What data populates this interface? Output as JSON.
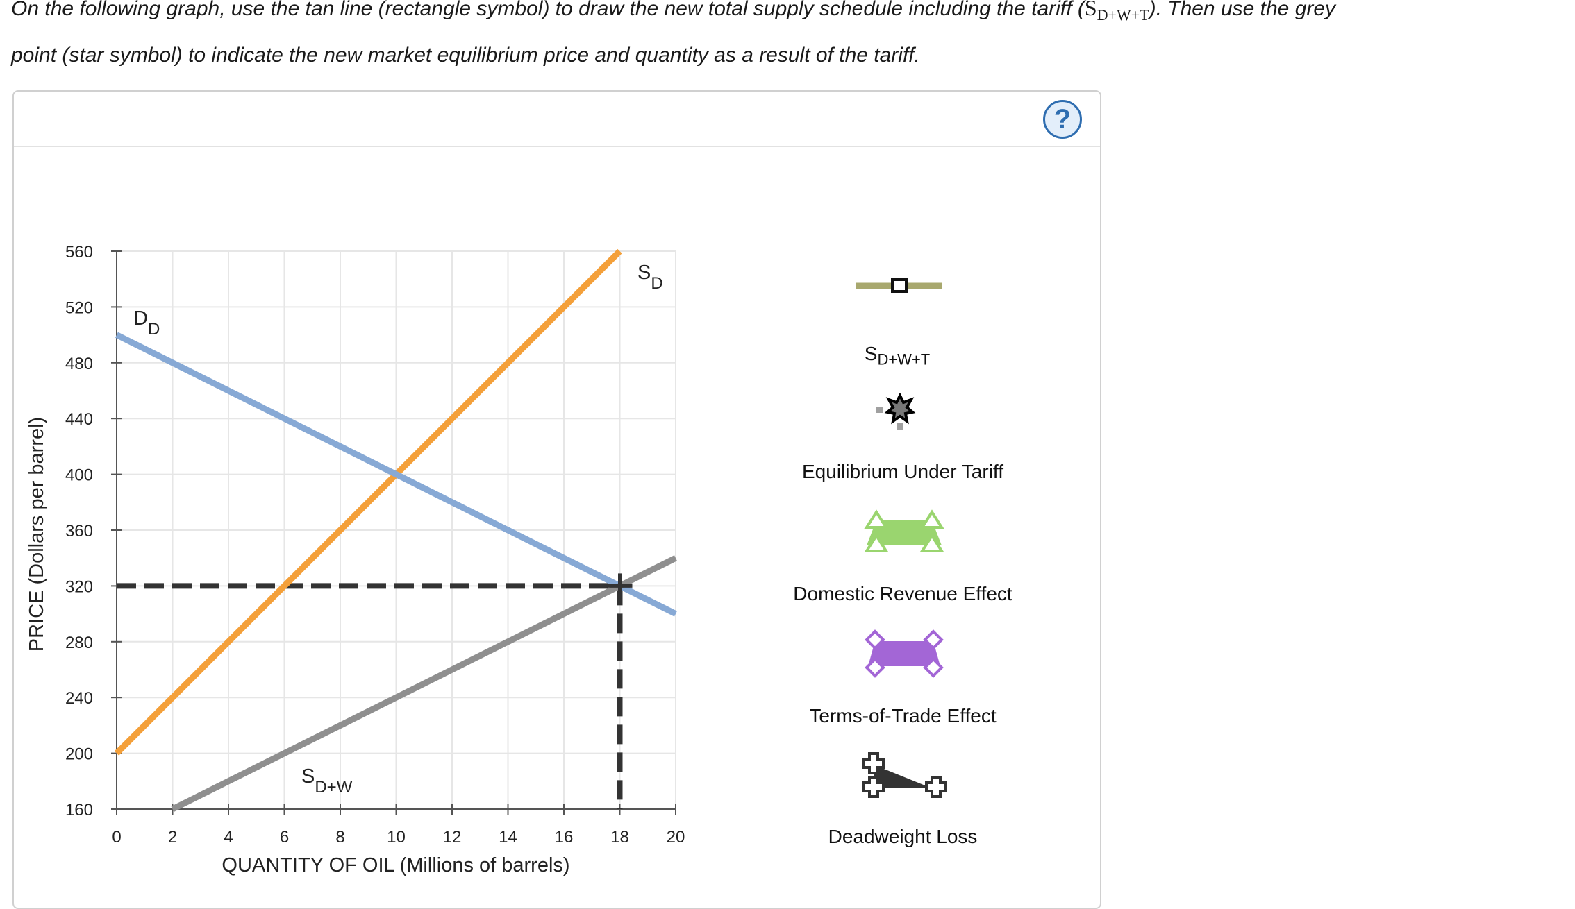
{
  "instructions": {
    "line1_a": "On the following graph, use the tan line (rectangle symbol) to draw the new total supply schedule including the tariff (",
    "line1_sym": "S",
    "line1_sub": "D+W+T",
    "line1_b": "). Then use the grey",
    "line2": "point (star symbol) to indicate the new market equilibrium price and quantity as a result of the tariff."
  },
  "help_label": "?",
  "palette": [
    {
      "label_main": "S",
      "label_sub": "D+W+T",
      "icon": "tan-line-rectangle-icon",
      "color": "#a8a86e"
    },
    {
      "label_main": "Equilibrium Under Tariff",
      "icon": "grey-star-point-icon",
      "color": "#8c8c8c"
    },
    {
      "label_main": "Domestic Revenue Effect",
      "icon": "green-triangle-area-icon",
      "color": "#9ad56f"
    },
    {
      "label_main": "Terms-of-Trade Effect",
      "icon": "purple-diamond-area-icon",
      "color": "#a366d6"
    },
    {
      "label_main": "Deadweight Loss",
      "icon": "black-cross-area-icon",
      "color": "#333333"
    }
  ],
  "chart_data": {
    "type": "line",
    "xlabel": "QUANTITY OF OIL (Millions of barrels)",
    "ylabel": "PRICE (Dollars per barrel)",
    "xlim": [
      0,
      20
    ],
    "ylim": [
      160,
      560
    ],
    "x_ticks": [
      0,
      2,
      4,
      6,
      8,
      10,
      12,
      14,
      16,
      18,
      20
    ],
    "y_ticks": [
      160,
      200,
      240,
      280,
      320,
      360,
      400,
      440,
      480,
      520,
      560
    ],
    "grid": true,
    "series": [
      {
        "name": "S",
        "name_sub": "D",
        "color": "#f4a03a",
        "points": [
          [
            0,
            200
          ],
          [
            18,
            560
          ]
        ]
      },
      {
        "name": "D",
        "name_sub": "D",
        "color": "#87a9d5",
        "points": [
          [
            0,
            500
          ],
          [
            20,
            300
          ]
        ]
      },
      {
        "name": "S",
        "name_sub": "D+W",
        "color": "#8f8f8f",
        "points": [
          [
            2,
            160
          ],
          [
            20,
            340
          ]
        ]
      }
    ],
    "equilibrium": {
      "x": 18,
      "y": 320,
      "color": "#333333"
    }
  }
}
